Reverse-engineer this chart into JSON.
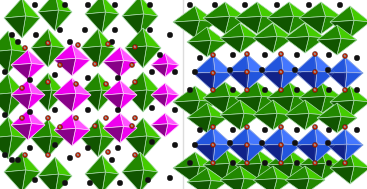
{
  "background_color": "#ffffff",
  "fig_width": 3.67,
  "fig_height": 1.89,
  "dpi": 100,
  "green_color": "#2db800",
  "green_dark": "#1a7a00",
  "green_edge": "#ccffcc",
  "green_face_light": "#44cc00",
  "green_face_mid": "#228800",
  "green_face_dark": "#115500",
  "magenta_color": "#ee00ee",
  "magenta_dark": "#990099",
  "magenta_edge": "#ffaaff",
  "magenta_face_light": "#ff55ff",
  "magenta_face_dark": "#880088",
  "blue_color": "#2255dd",
  "blue_dark": "#112299",
  "blue_edge": "#aabbff",
  "blue_face_light": "#4477ff",
  "blue_face_dark": "#112288",
  "black_atom": "#111111",
  "red_atom": "#cc2200",
  "white_atom": "#ffffff",
  "pink_atom": "#ff88aa"
}
